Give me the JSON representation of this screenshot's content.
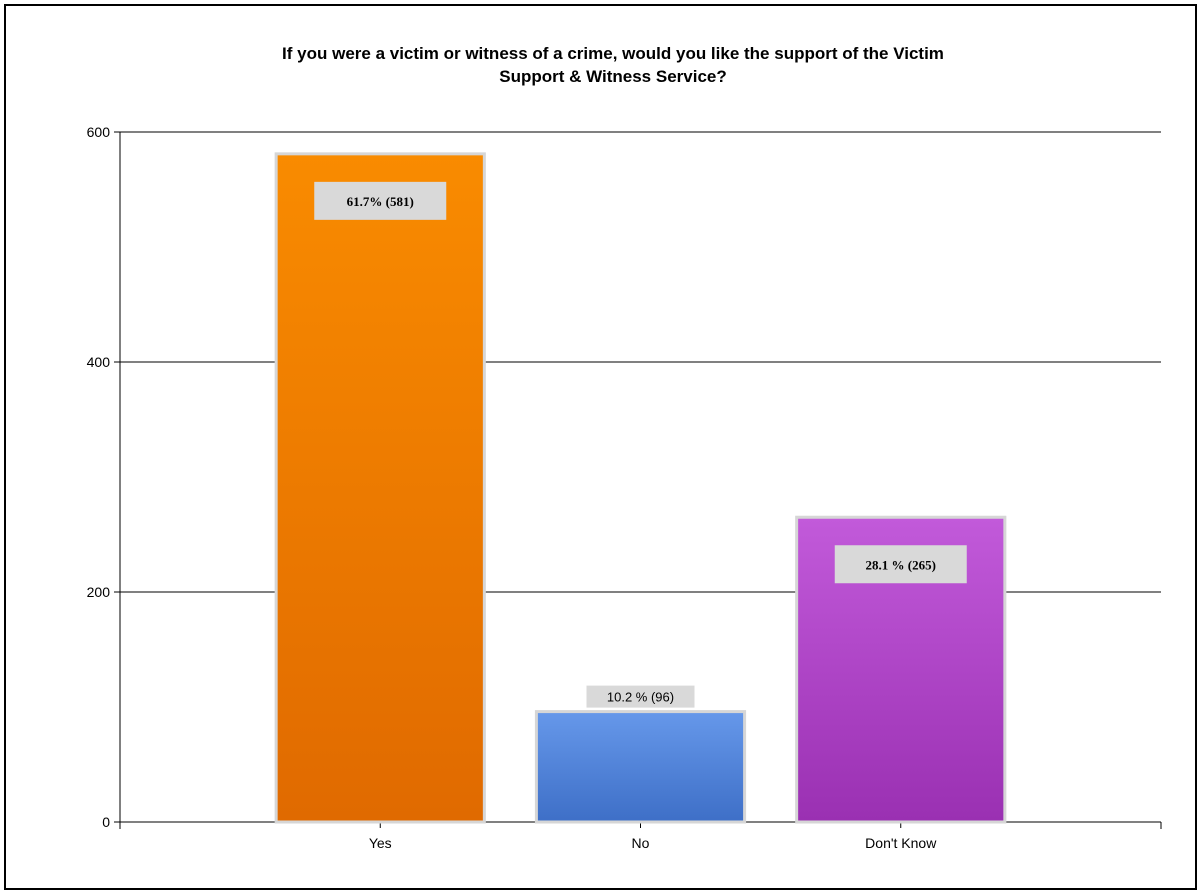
{
  "chart_data": {
    "type": "bar",
    "title": "If you were a victim or witness of a crime, would you like the support of the Victim Support & Witness Service?",
    "title_lines": [
      "If you were a victim or witness of a crime, would you like the support of the Victim",
      "Support & Witness Service?"
    ],
    "categories": [
      "Yes",
      "No",
      "Don't Know"
    ],
    "values": [
      581,
      96,
      265
    ],
    "data_labels": [
      "61.7% (581)",
      "10.2 % (96)",
      "28.1 % (265)"
    ],
    "xlabel": "",
    "ylabel": "",
    "ylim": [
      0,
      600
    ],
    "yticks": [
      0,
      200,
      400,
      600
    ],
    "ytick_labels": [
      "0",
      "200",
      "400",
      "600"
    ],
    "grid": true,
    "legend": "none",
    "colors": {
      "Yes": [
        "#f98b00",
        "#e06a00"
      ],
      "No": [
        "#6698ea",
        "#3e6fc7"
      ],
      "Don't Know": [
        "#c25ada",
        "#9a30b2"
      ],
      "bar_border": "#d6d6d6",
      "label_bg": "#d9d9d9"
    }
  }
}
